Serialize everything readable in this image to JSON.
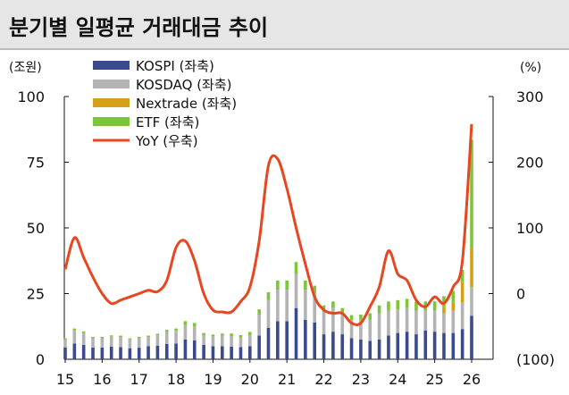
{
  "title": "분기별 일평균 거래대금 추이",
  "chart_data": {
    "type": "bar",
    "stacked": true,
    "left_unit": "(조원)",
    "right_unit": "(%)",
    "ylim": [
      0,
      100
    ],
    "y2lim": [
      -100,
      300
    ],
    "y_ticks": [
      "0",
      "25",
      "50",
      "75",
      "100"
    ],
    "y2_ticks": [
      "(100)",
      "0",
      "100",
      "200",
      "300"
    ],
    "y2_tick_values": [
      -100,
      0,
      100,
      200,
      300
    ],
    "x_tick_labels": [
      "15",
      "16",
      "17",
      "18",
      "19",
      "20",
      "21",
      "22",
      "23",
      "24",
      "25",
      "26"
    ],
    "categories": [
      "15Q1",
      "15Q2",
      "15Q3",
      "15Q4",
      "16Q1",
      "16Q2",
      "16Q3",
      "16Q4",
      "17Q1",
      "17Q2",
      "17Q3",
      "17Q4",
      "18Q1",
      "18Q2",
      "18Q3",
      "18Q4",
      "19Q1",
      "19Q2",
      "19Q3",
      "19Q4",
      "20Q1",
      "20Q2",
      "20Q3",
      "20Q4",
      "21Q1",
      "21Q2",
      "21Q3",
      "21Q4",
      "22Q1",
      "22Q2",
      "22Q3",
      "22Q4",
      "23Q1",
      "23Q2",
      "23Q3",
      "23Q4",
      "24Q1",
      "24Q2",
      "24Q3",
      "24Q4",
      "25Q1",
      "25Q2",
      "25Q3",
      "25Q4",
      "26Q1"
    ],
    "series": [
      {
        "name": "KOSPI (좌축)",
        "color": "#3b4a8c",
        "kind": "bar",
        "values": [
          4.5,
          6,
          5.5,
          4.5,
          4.5,
          4.8,
          4.6,
          4.2,
          4.4,
          5,
          5.2,
          5.8,
          6,
          7.5,
          7.2,
          5.5,
          5,
          5,
          4.8,
          4.6,
          5,
          9,
          12,
          14.5,
          14.5,
          19.5,
          15,
          14,
          9.5,
          10.5,
          9.5,
          8,
          7.5,
          7,
          7.5,
          9,
          10,
          10.5,
          9.5,
          11,
          10.5,
          10,
          10,
          11.5,
          16.5
        ]
      },
      {
        "name": "KOSDAQ (좌축)",
        "color": "#b3b3b3",
        "kind": "bar",
        "values": [
          3,
          5,
          4.5,
          3.5,
          3.5,
          3.8,
          3.9,
          3.4,
          3.6,
          3.5,
          3.9,
          4.6,
          4.8,
          5.5,
          5.3,
          3.7,
          3.6,
          3.9,
          4,
          3.7,
          4.2,
          8,
          10.5,
          12,
          12,
          13,
          11.5,
          11,
          8.5,
          9,
          8,
          7,
          7.5,
          8,
          10,
          9.5,
          9,
          9,
          9,
          7.5,
          8,
          7.5,
          8.5,
          10,
          11
        ]
      },
      {
        "name": "Nextrade (좌축)",
        "color": "#d4a017",
        "kind": "bar",
        "values": [
          0,
          0,
          0,
          0,
          0,
          0,
          0,
          0,
          0,
          0,
          0,
          0,
          0,
          0,
          0,
          0,
          0,
          0,
          0,
          0,
          0,
          0,
          0,
          0,
          0,
          0,
          0,
          0,
          0,
          0,
          0,
          0,
          0,
          0,
          0,
          0,
          0,
          0,
          0,
          0,
          0,
          2.5,
          3,
          8,
          15
        ]
      },
      {
        "name": "ETF (좌축)",
        "color": "#7dc63a",
        "kind": "bar",
        "values": [
          0.5,
          0.7,
          0.6,
          0.5,
          0.5,
          0.5,
          0.5,
          0.4,
          0.5,
          0.5,
          0.6,
          0.8,
          0.9,
          1.5,
          1.3,
          0.8,
          0.8,
          0.9,
          1,
          0.9,
          1.2,
          2,
          3,
          3.5,
          3.5,
          4.5,
          3.5,
          3,
          2.5,
          2.5,
          2,
          1.8,
          2,
          2.5,
          3,
          3.5,
          3.5,
          3.5,
          3.5,
          3.5,
          3.5,
          4,
          4.5,
          4.5,
          41
        ]
      },
      {
        "name": "YoY (우축)",
        "color": "#e8461f",
        "kind": "line",
        "axis": "right",
        "values": [
          37,
          85,
          55,
          25,
          0,
          -15,
          -10,
          -5,
          0,
          5,
          3,
          20,
          70,
          80,
          50,
          0,
          -25,
          -28,
          -28,
          -12,
          10,
          80,
          195,
          205,
          160,
          100,
          45,
          -5,
          -25,
          -30,
          -30,
          -45,
          -45,
          -20,
          10,
          65,
          30,
          20,
          -10,
          -20,
          -5,
          -15,
          10,
          50,
          258
        ]
      }
    ]
  }
}
